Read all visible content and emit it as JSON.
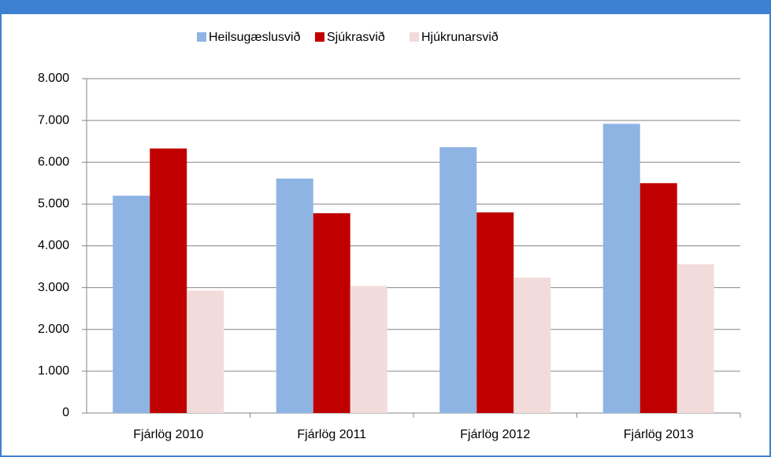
{
  "chart_data": {
    "type": "bar",
    "categories": [
      "Fjárlög 2010",
      "Fjárlög 2011",
      "Fjárlög 2012",
      "Fjárlög 2013"
    ],
    "series": [
      {
        "name": "Heilsugæslusvið",
        "color": "#8eb4e3",
        "values": [
          5200,
          5610,
          6360,
          6920
        ]
      },
      {
        "name": "Sjúkrasvið",
        "color": "#c00000",
        "values": [
          6330,
          4780,
          4800,
          5500
        ]
      },
      {
        "name": "Hjúkrunarsvið",
        "color": "#f2dcdb",
        "values": [
          2930,
          3040,
          3240,
          3560
        ]
      }
    ],
    "ylim": [
      0,
      8000
    ],
    "yticks": [
      0,
      {
        "value": 1000,
        "label": "1.000"
      },
      {
        "value": 2000,
        "label": "2.000"
      },
      {
        "value": 3000,
        "label": "3.000"
      },
      {
        "value": 4000,
        "label": "4.000"
      },
      {
        "value": 5000,
        "label": "5.000"
      },
      {
        "value": 6000,
        "label": "6.000"
      },
      {
        "value": 7000,
        "label": "7.000"
      },
      {
        "value": 8000,
        "label": "8.000"
      }
    ],
    "grid": true,
    "legend": "top"
  }
}
